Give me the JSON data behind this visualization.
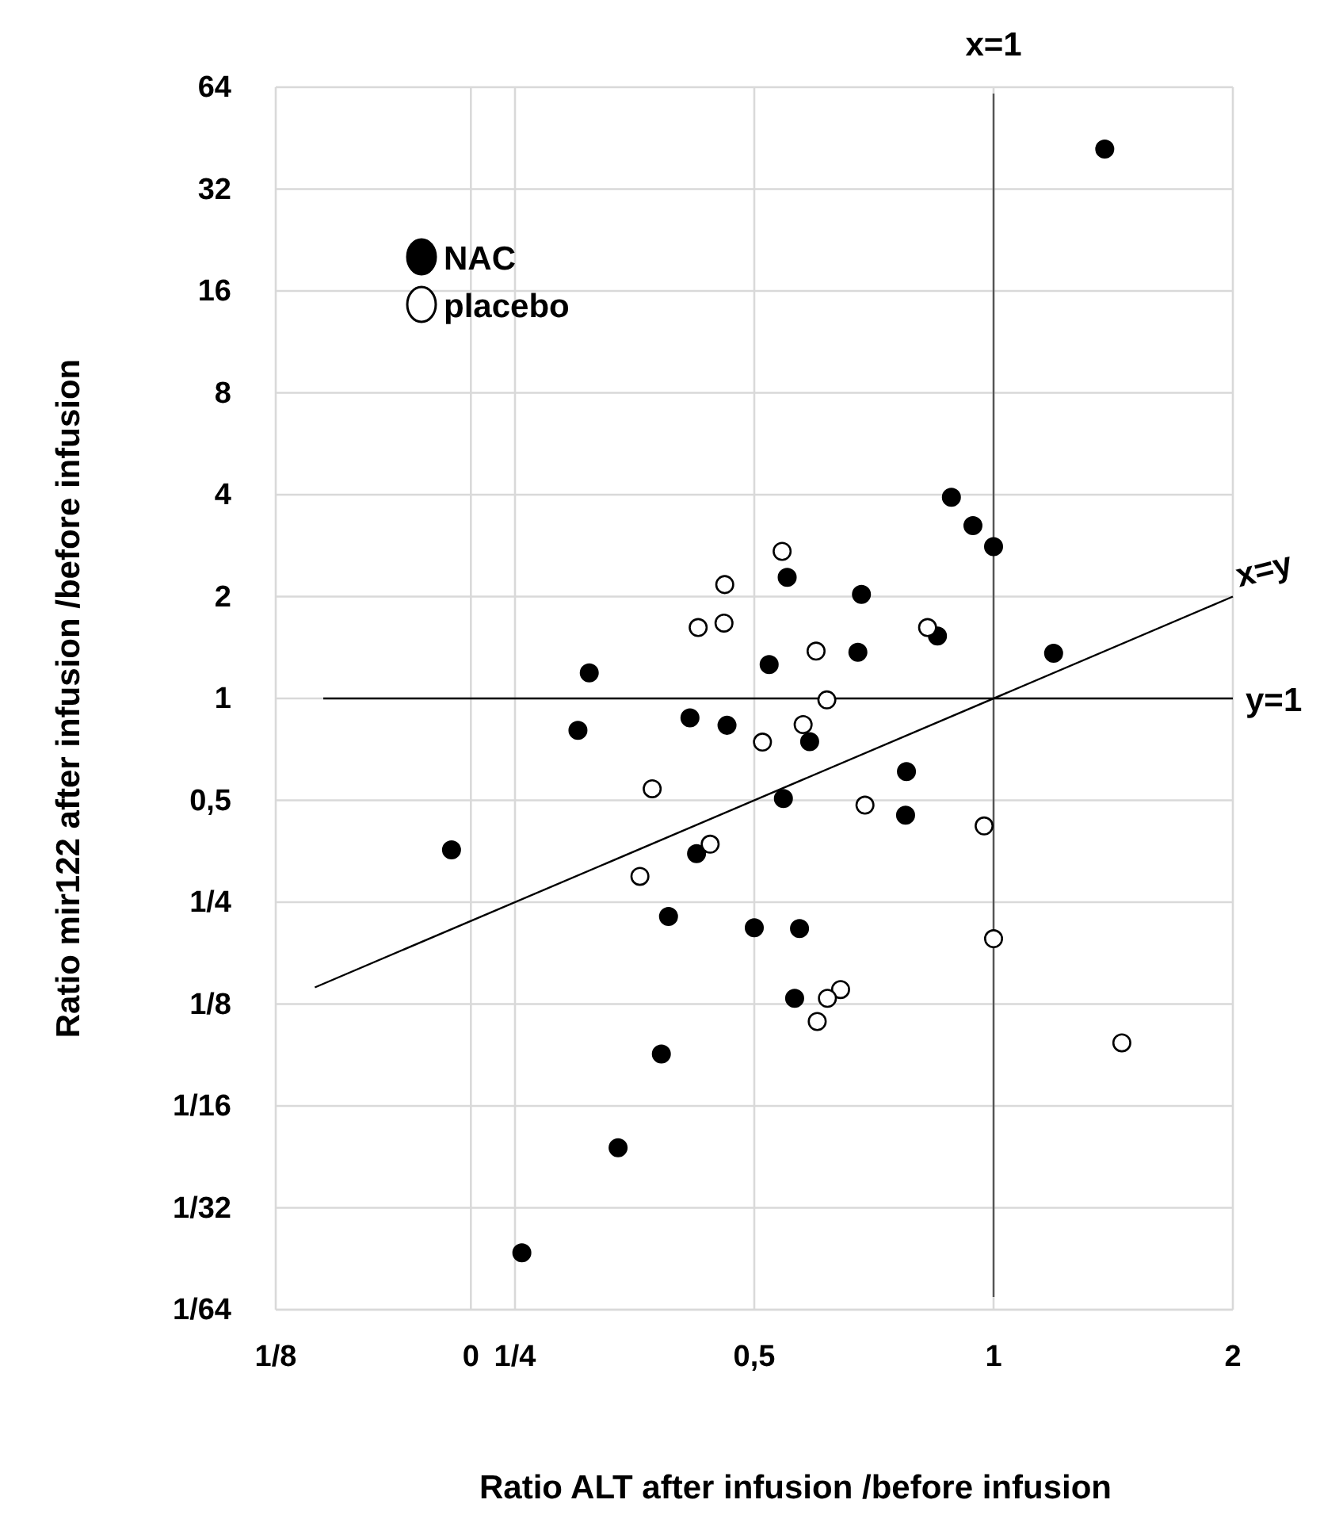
{
  "chart_data": {
    "type": "scatter",
    "xlabel": "Ratio ALT after infusion /before infusion",
    "ylabel": "Ratio mir122 after infusion /before infusion",
    "log": "xy",
    "grid": true,
    "legend": "top left",
    "marker": "circle",
    "xlim": [
      0.125,
      2
    ],
    "xticks": [
      {
        "value": 0.125,
        "label": "1/8"
      },
      {
        "value": 0.22,
        "label": "0"
      },
      {
        "value": 0.25,
        "label": "1/4"
      },
      {
        "value": 0.5,
        "label": "0,5"
      },
      1,
      2
    ],
    "ylim": [
      0.015625,
      64
    ],
    "yticks": [
      {
        "value": 0.015625,
        "label": "1/64"
      },
      {
        "value": 0.03125,
        "label": "1/32"
      },
      {
        "value": 0.0625,
        "label": "1/16"
      },
      {
        "value": 0.125,
        "label": "1/8"
      },
      {
        "value": 0.25,
        "label": "1/4"
      },
      {
        "value": 0.5,
        "label": "0,5"
      },
      1,
      2,
      4,
      8,
      16,
      32,
      64
    ],
    "ref_lines": [
      {
        "axis": "x",
        "value": 1,
        "label": "x=1",
        "color": "#555555"
      },
      {
        "axis": "y",
        "value": 1,
        "label": "y=1",
        "color": "#000000"
      }
    ],
    "series": [
      {
        "name": "NAC",
        "color": "#000000",
        "x": [
          0.885,
          0.942,
          1.0,
          0.55,
          0.682,
          0.85,
          0.675,
          0.522,
          1.19,
          0.31,
          0.3,
          0.415,
          0.462,
          0.587,
          0.777,
          0.544,
          0.775,
          0.208,
          0.423,
          1.38,
          0.39,
          0.5,
          0.57,
          0.562,
          0.382,
          0.337,
          0.255
        ],
        "values": [
          3.93,
          3.24,
          2.81,
          2.28,
          2.03,
          1.53,
          1.37,
          1.26,
          1.36,
          1.19,
          0.805,
          0.876,
          0.833,
          0.745,
          0.608,
          0.506,
          0.452,
          0.357,
          0.348,
          42,
          0.227,
          0.21,
          0.209,
          0.13,
          0.089,
          0.047,
          0.023
        ]
      },
      {
        "name": "placebo",
        "color": "#ffffff",
        "x": [
          0.542,
          0.459,
          0.425,
          0.458,
          0.598,
          0.826,
          0.617,
          0.576,
          0.512,
          0.372,
          0.689,
          0.973,
          0.44,
          0.359,
          1.0,
          0.642,
          0.618,
          0.6,
          1.45
        ],
        "values": [
          2.72,
          2.17,
          1.62,
          1.67,
          1.38,
          1.62,
          0.99,
          0.837,
          0.743,
          0.541,
          0.484,
          0.42,
          0.371,
          0.298,
          0.195,
          0.138,
          0.13,
          0.111,
          0.096
        ]
      },
      {
        "name": "x=y",
        "type": "line",
        "color": "#000000",
        "marker": "none",
        "line_style": "solid",
        "x": [
          0.14,
          2
        ],
        "values": [
          0.14,
          2
        ]
      }
    ]
  }
}
